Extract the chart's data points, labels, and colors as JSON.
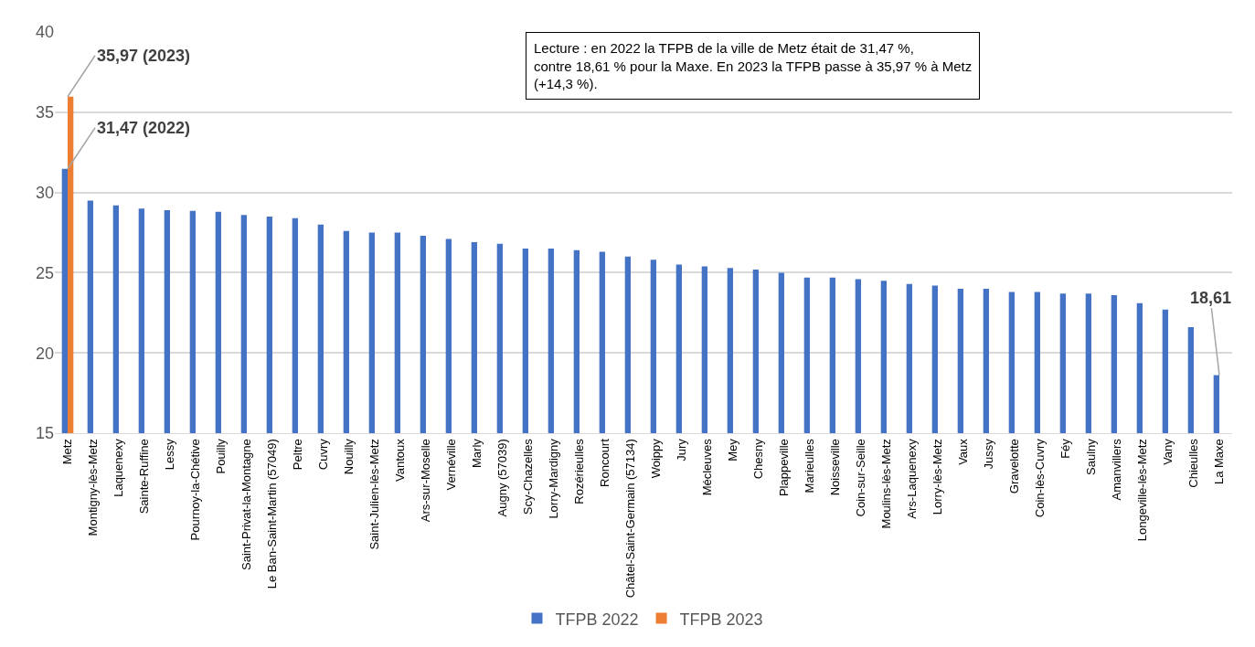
{
  "chart_data": {
    "type": "bar",
    "categories": [
      "Metz",
      "Montigny-lès-Metz",
      "Laquenexy",
      "Sainte-Ruffine",
      "Lessy",
      "Pournoy-la-Chétive",
      "Pouilly",
      "Saint-Privat-la-Montagne",
      "Le Ban-Saint-Martin (57049)",
      "Peltre",
      "Cuvry",
      "Nouilly",
      "Saint-Julien-lès-Metz",
      "Vantoux",
      "Ars-sur-Moselle",
      "Vernéville",
      "Marly",
      "Augny (57039)",
      "Scy-Chazelles",
      "Lorry-Mardigny",
      "Rozérieulles",
      "Roncourt",
      "Châtel-Saint-Germain (57134)",
      "Woippy",
      "Jury",
      "Mécleuves",
      "Mey",
      "Chesny",
      "Plappeville",
      "Marieulles",
      "Noisseville",
      "Coin-sur-Seille",
      "Moulins-lès-Metz",
      "Ars-Laquenexy",
      "Lorry-lès-Metz",
      "Vaux",
      "Jussy",
      "Gravelotte",
      "Coin-lès-Cuvry",
      "Féy",
      "Saulny",
      "Amanvillers",
      "Longeville-lès-Metz",
      "Vany",
      "Chieulles",
      "La Maxe"
    ],
    "series": [
      {
        "name": "TFPB 2022",
        "color": "#4472c4",
        "values": [
          31.47,
          29.5,
          29.2,
          29.0,
          28.9,
          28.85,
          28.8,
          28.6,
          28.5,
          28.4,
          28.0,
          27.6,
          27.5,
          27.5,
          27.3,
          27.1,
          26.9,
          26.8,
          26.5,
          26.5,
          26.4,
          26.3,
          26.0,
          25.8,
          25.5,
          25.4,
          25.3,
          25.2,
          25.0,
          24.7,
          24.7,
          24.6,
          24.5,
          24.3,
          24.2,
          24.0,
          24.0,
          23.8,
          23.8,
          23.7,
          23.7,
          23.6,
          23.1,
          22.7,
          21.6,
          18.61
        ]
      },
      {
        "name": "TFPB 2023",
        "color": "#ed7d31",
        "values": [
          35.97,
          null,
          null,
          null,
          null,
          null,
          null,
          null,
          null,
          null,
          null,
          null,
          null,
          null,
          null,
          null,
          null,
          null,
          null,
          null,
          null,
          null,
          null,
          null,
          null,
          null,
          null,
          null,
          null,
          null,
          null,
          null,
          null,
          null,
          null,
          null,
          null,
          null,
          null,
          null,
          null,
          null,
          null,
          null,
          null,
          null
        ]
      }
    ],
    "ylim": [
      15,
      40
    ],
    "yticks": [
      15,
      20,
      25,
      30,
      35,
      40
    ],
    "grid": "y",
    "legend": "bottom",
    "annotations": [
      {
        "text": "35,97 (2023)",
        "x": "Metz",
        "y": 35.97
      },
      {
        "text": "31,47 (2022)",
        "x": "Metz",
        "y": 31.47
      },
      {
        "text": "18,61",
        "x": "La Maxe",
        "y": 18.61
      },
      "Lecture : en 2022 la TFPB de la ville de Metz était de 31,47 %, contre 18,61 % pour la Maxe. En 2023 la TFPB passe à 35,97 % à Metz (+14,3 %)."
    ]
  }
}
